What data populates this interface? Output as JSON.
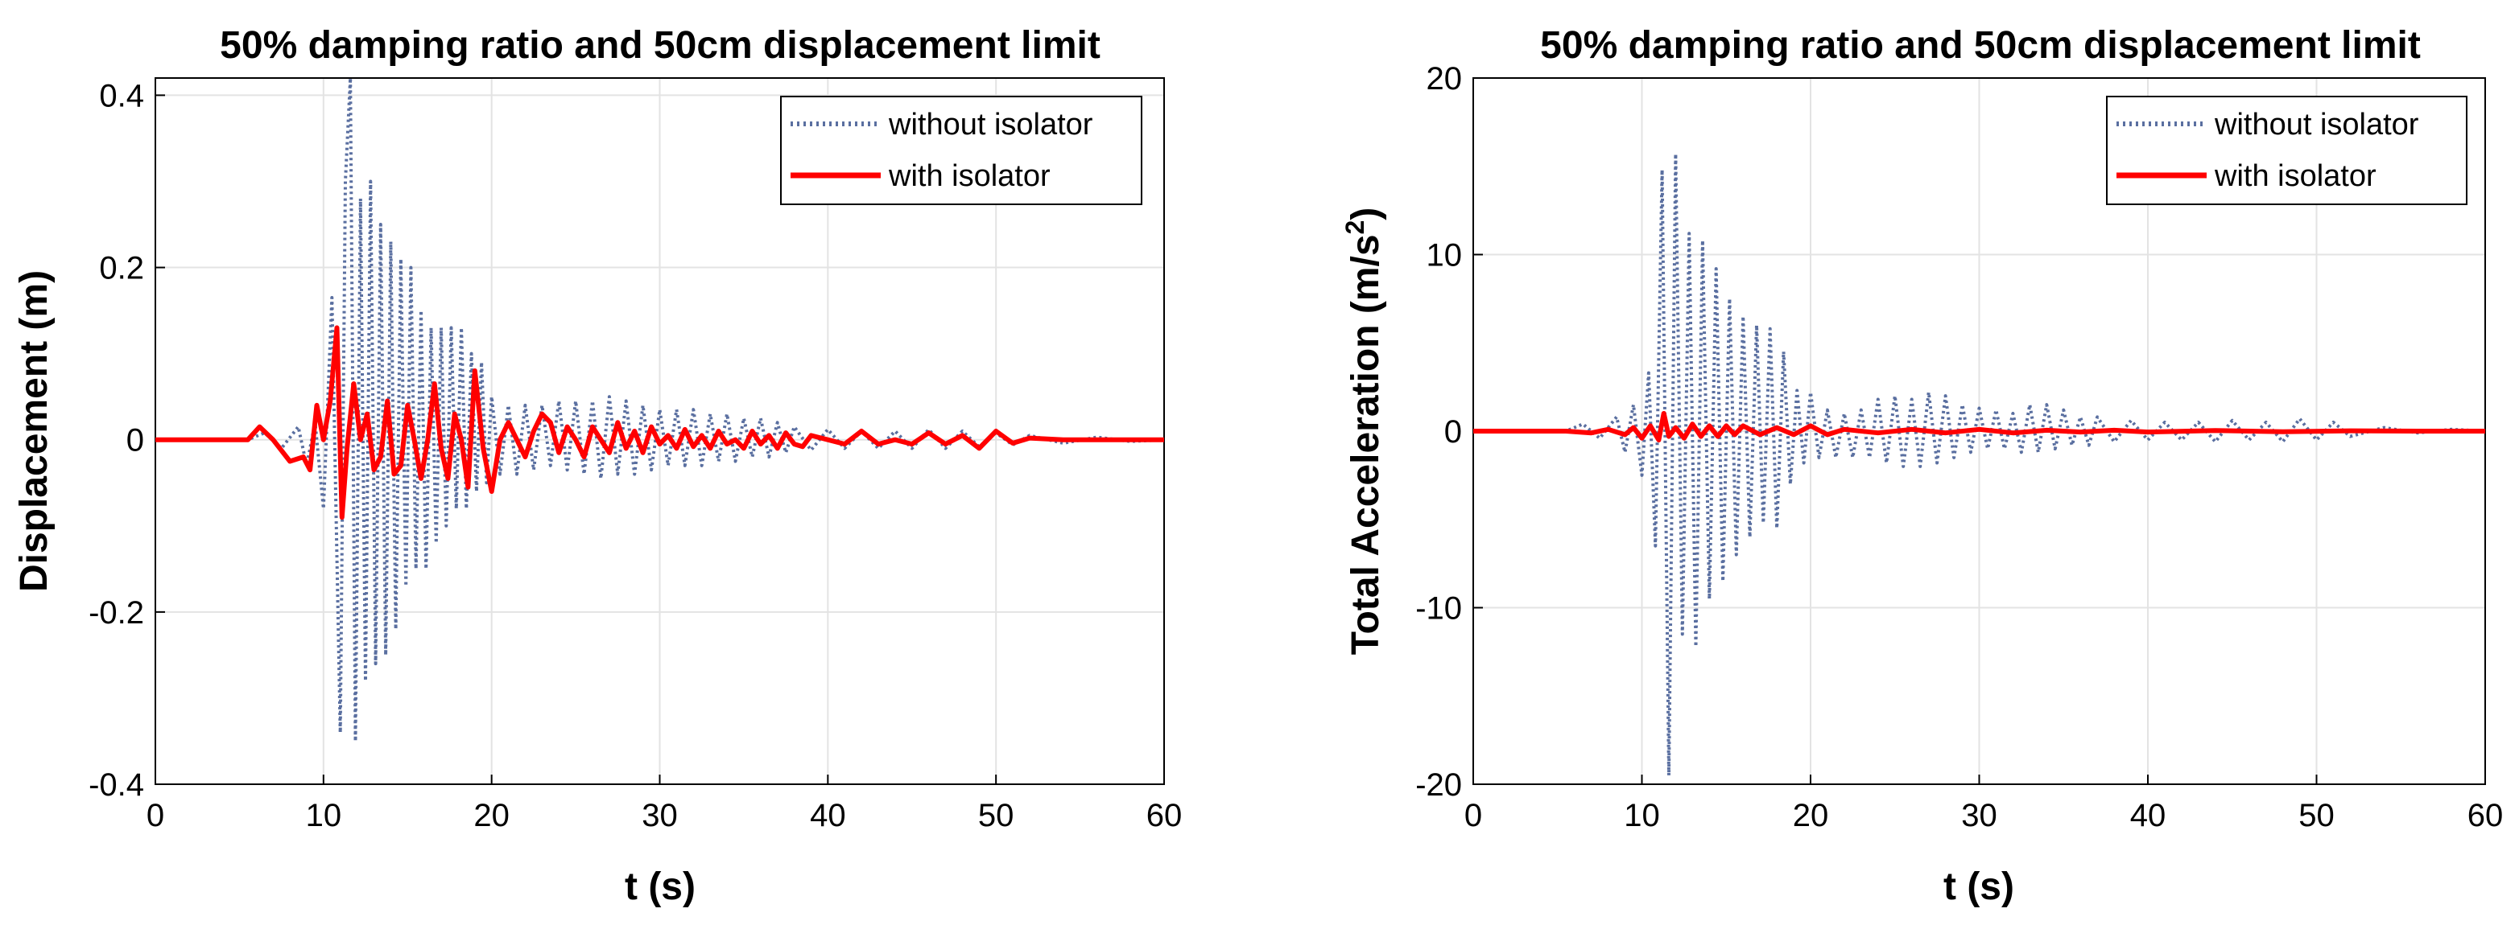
{
  "chart_data": [
    {
      "type": "line",
      "title": "50% damping ratio and 50cm displacement limit",
      "xlabel": "t (s)",
      "ylabel": "Displacement (m)",
      "xlim": [
        0,
        60
      ],
      "ylim": [
        -0.4,
        0.42
      ],
      "xticks": [
        0,
        10,
        20,
        30,
        40,
        50,
        60
      ],
      "yticks": [
        -0.4,
        -0.2,
        0,
        0.2,
        0.4
      ],
      "xtick_labels": [
        "0",
        "10",
        "20",
        "30",
        "40",
        "50",
        "60"
      ],
      "ytick_labels": [
        "-0.4",
        "-0.2",
        "0",
        "0.2",
        "0.4"
      ],
      "grid": true,
      "legend": "top-right",
      "series": [
        {
          "name": "without isolator",
          "style": "dotted",
          "color": "#5a6fa0",
          "x": [
            0,
            5.5,
            6.5,
            7.5,
            8.5,
            9.0,
            9.5,
            10.0,
            10.5,
            11.0,
            11.3,
            11.6,
            11.9,
            12.2,
            12.5,
            12.8,
            13.1,
            13.4,
            13.7,
            14.0,
            14.3,
            14.6,
            14.9,
            15.2,
            15.5,
            15.8,
            16.1,
            16.4,
            16.7,
            17.0,
            17.3,
            17.6,
            17.9,
            18.2,
            18.5,
            18.8,
            19.1,
            19.4,
            19.7,
            20.0,
            20.5,
            21.0,
            21.5,
            22.0,
            22.5,
            23.0,
            23.5,
            24.0,
            24.5,
            25.0,
            25.5,
            26.0,
            26.5,
            27.0,
            27.5,
            28.0,
            28.5,
            29.0,
            29.5,
            30.0,
            30.5,
            31.0,
            31.5,
            32.0,
            32.5,
            33.0,
            33.5,
            34.0,
            34.5,
            35.0,
            35.5,
            36.0,
            36.5,
            37.0,
            37.5,
            38.0,
            39.0,
            40.0,
            41.0,
            42.0,
            43.0,
            44.0,
            45.0,
            46.0,
            47.0,
            48.0,
            49.0,
            50.0,
            51.0,
            52.0,
            54.0,
            56.0,
            58.0,
            60.0
          ],
          "values": [
            0,
            0,
            0.008,
            -0.01,
            0.015,
            -0.03,
            0.02,
            -0.08,
            0.165,
            -0.34,
            0.3,
            0.42,
            -0.35,
            0.28,
            -0.28,
            0.3,
            -0.26,
            0.25,
            -0.25,
            0.23,
            -0.22,
            0.21,
            -0.17,
            0.2,
            -0.15,
            0.15,
            -0.15,
            0.13,
            -0.12,
            0.13,
            -0.1,
            0.13,
            -0.08,
            0.13,
            -0.08,
            0.1,
            -0.06,
            0.09,
            -0.05,
            0.05,
            -0.04,
            0.04,
            -0.04,
            0.04,
            -0.035,
            0.04,
            -0.03,
            0.045,
            -0.035,
            0.045,
            -0.04,
            0.045,
            -0.045,
            0.05,
            -0.04,
            0.045,
            -0.04,
            0.04,
            -0.035,
            0.035,
            -0.03,
            0.035,
            -0.03,
            0.035,
            -0.03,
            0.03,
            -0.025,
            0.03,
            -0.025,
            0.025,
            -0.02,
            0.025,
            -0.02,
            0.02,
            -0.015,
            0.015,
            -0.012,
            0.012,
            -0.01,
            0.01,
            -0.01,
            0.01,
            -0.01,
            0.012,
            -0.01,
            0.01,
            -0.008,
            0.008,
            -0.006,
            0.005,
            -0.004,
            0.003,
            -0.002,
            0
          ]
        },
        {
          "name": "with isolator",
          "style": "solid",
          "color": "#ff0000",
          "x": [
            0,
            5.5,
            6.2,
            7.0,
            8.0,
            8.8,
            9.2,
            9.6,
            10.0,
            10.4,
            10.8,
            11.1,
            11.4,
            11.8,
            12.2,
            12.6,
            13.0,
            13.4,
            13.8,
            14.2,
            14.6,
            15.0,
            15.4,
            15.8,
            16.2,
            16.6,
            17.0,
            17.4,
            17.8,
            18.2,
            18.6,
            19.0,
            19.5,
            20.0,
            20.5,
            21.0,
            21.5,
            22.0,
            22.5,
            23.0,
            23.5,
            24.0,
            24.5,
            25.0,
            25.5,
            26.0,
            26.5,
            27.0,
            27.5,
            28.0,
            28.5,
            29.0,
            29.5,
            30.0,
            30.5,
            31.0,
            31.5,
            32.0,
            32.5,
            33.0,
            33.5,
            34.0,
            34.5,
            35.0,
            35.5,
            36.0,
            36.5,
            37.0,
            37.5,
            38.0,
            38.5,
            39.0,
            40.0,
            41.0,
            42.0,
            43.0,
            44.0,
            45.0,
            46.0,
            47.0,
            48.0,
            49.0,
            50.0,
            51.0,
            52.0,
            54.0,
            56.0,
            58.0,
            60.0
          ],
          "values": [
            0,
            0,
            0.015,
            0.0,
            -0.025,
            -0.02,
            -0.035,
            0.04,
            0.0,
            0.045,
            0.13,
            -0.09,
            -0.01,
            0.065,
            0.0,
            0.03,
            -0.035,
            -0.02,
            0.045,
            -0.04,
            -0.03,
            0.04,
            0.0,
            -0.045,
            0.0,
            0.065,
            -0.01,
            -0.045,
            0.03,
            0.0,
            -0.055,
            0.08,
            -0.01,
            -0.06,
            0.0,
            0.02,
            0.0,
            -0.02,
            0.01,
            0.03,
            0.02,
            -0.015,
            0.015,
            0.0,
            -0.02,
            0.015,
            0.0,
            -0.015,
            0.02,
            -0.01,
            0.01,
            -0.015,
            0.015,
            -0.005,
            0.005,
            -0.01,
            0.012,
            -0.008,
            0.005,
            -0.01,
            0.01,
            -0.005,
            0.0,
            -0.01,
            0.01,
            -0.005,
            0.005,
            -0.01,
            0.008,
            -0.005,
            -0.008,
            0.005,
            0.0,
            -0.005,
            0.01,
            -0.005,
            0.0,
            -0.005,
            0.008,
            -0.005,
            0.005,
            -0.01,
            0.01,
            -0.004,
            0.002,
            0.0,
            0.0,
            0.0,
            0
          ]
        }
      ]
    },
    {
      "type": "line",
      "title": "50% damping ratio and 50cm displacement limit",
      "xlabel": "t (s)",
      "ylabel": "Total Acceleration (m/s",
      "ylabel_superscript": "2",
      "ylabel_suffix": ")",
      "xlim": [
        0,
        60
      ],
      "ylim": [
        -20,
        20
      ],
      "xticks": [
        0,
        10,
        20,
        30,
        40,
        50,
        60
      ],
      "yticks": [
        -20,
        -10,
        0,
        10,
        20
      ],
      "xtick_labels": [
        "0",
        "10",
        "20",
        "30",
        "40",
        "50",
        "60"
      ],
      "ytick_labels": [
        "-20",
        "-10",
        "0",
        "10",
        "20"
      ],
      "grid": true,
      "legend": "top-right",
      "series": [
        {
          "name": "without isolator",
          "style": "dotted",
          "color": "#5a6fa0",
          "x": [
            0,
            5.5,
            6.5,
            7.5,
            8.5,
            9.0,
            9.5,
            10.0,
            10.4,
            10.8,
            11.2,
            11.6,
            12.0,
            12.4,
            12.8,
            13.2,
            13.6,
            14.0,
            14.4,
            14.8,
            15.2,
            15.6,
            16.0,
            16.4,
            16.8,
            17.2,
            17.6,
            18.0,
            18.4,
            18.8,
            19.2,
            19.6,
            20.0,
            20.5,
            21.0,
            21.5,
            22.0,
            22.5,
            23.0,
            23.5,
            24.0,
            24.5,
            25.0,
            25.5,
            26.0,
            26.5,
            27.0,
            27.5,
            28.0,
            28.5,
            29.0,
            29.5,
            30.0,
            30.5,
            31.0,
            31.5,
            32.0,
            32.5,
            33.0,
            33.5,
            34.0,
            34.5,
            35.0,
            35.5,
            36.0,
            36.5,
            37.0,
            38.0,
            39.0,
            40.0,
            41.0,
            42.0,
            43.0,
            44.0,
            45.0,
            46.0,
            47.0,
            48.0,
            49.0,
            50.0,
            51.0,
            52.0,
            54.0,
            56.0,
            58.0,
            60.0
          ],
          "values": [
            0,
            0,
            0.4,
            -0.4,
            0.8,
            -1.2,
            1.5,
            -2.5,
            3.3,
            -6.5,
            14.8,
            -19.5,
            15.7,
            -11.5,
            11.2,
            -12.2,
            10.8,
            -9.5,
            9.2,
            -8.5,
            7.5,
            -7.0,
            6.5,
            -6.0,
            6.0,
            -5.2,
            5.8,
            -5.5,
            4.5,
            -3.0,
            2.3,
            -1.8,
            2.2,
            -1.5,
            1.2,
            -1.5,
            1.0,
            -1.5,
            1.2,
            -1.5,
            1.8,
            -1.8,
            2.0,
            -2.0,
            1.8,
            -2.0,
            2.2,
            -1.8,
            2.0,
            -1.5,
            1.5,
            -1.2,
            1.3,
            -1.0,
            1.2,
            -1.0,
            1.0,
            -1.2,
            1.5,
            -1.2,
            1.5,
            -1.0,
            1.2,
            -0.8,
            0.8,
            -0.8,
            0.8,
            -0.6,
            0.6,
            -0.5,
            0.5,
            -0.5,
            0.5,
            -0.6,
            0.6,
            -0.5,
            0.5,
            -0.6,
            0.7,
            -0.5,
            0.5,
            -0.3,
            0.2,
            -0.1,
            0.1,
            0
          ]
        },
        {
          "name": "with isolator",
          "style": "solid",
          "color": "#ff0000",
          "x": [
            0,
            5.5,
            7.0,
            8.0,
            9.0,
            9.5,
            10.0,
            10.5,
            11.0,
            11.3,
            11.6,
            12.0,
            12.5,
            13.0,
            13.5,
            14.0,
            14.5,
            15.0,
            15.5,
            16.0,
            17.0,
            18.0,
            19.0,
            20.0,
            21.0,
            22.0,
            24.0,
            26.0,
            28.0,
            30.0,
            32.0,
            34.0,
            36.0,
            38.0,
            40.0,
            44.0,
            48.0,
            52.0,
            56.0,
            60.0
          ],
          "values": [
            0,
            0,
            -0.1,
            0.1,
            -0.2,
            0.2,
            -0.4,
            0.3,
            -0.5,
            1.0,
            -0.3,
            0.2,
            -0.4,
            0.4,
            -0.3,
            0.3,
            -0.3,
            0.3,
            -0.2,
            0.3,
            -0.2,
            0.2,
            -0.2,
            0.3,
            -0.2,
            0.1,
            -0.1,
            0.1,
            -0.1,
            0.1,
            -0.1,
            0.05,
            -0.05,
            0.05,
            -0.05,
            0.03,
            -0.03,
            0.02,
            0,
            0
          ]
        }
      ]
    }
  ]
}
